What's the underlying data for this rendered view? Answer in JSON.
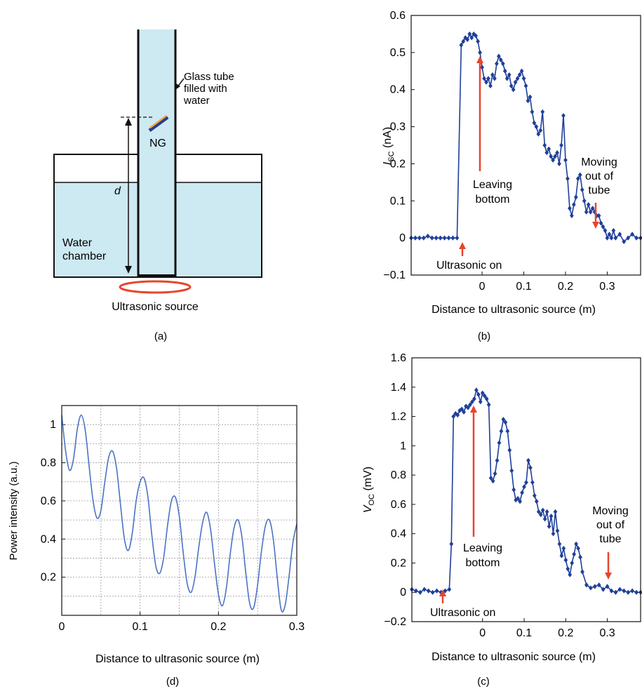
{
  "colors": {
    "water": "#cde9f1",
    "source_ring": "#e8452c",
    "data_blue": "#1f3f99",
    "curve_blue": "#4a73c4",
    "arrow_red": "#e8452c",
    "ng_blue": "#2a3c8f",
    "ng_orange": "#f5a73b"
  },
  "panel_a": {
    "label": "(a)",
    "tube_label": [
      "Glass tube",
      "filled with",
      "water"
    ],
    "ng_label": "NG",
    "d_label": "d",
    "chamber_label": [
      "Water",
      "chamber"
    ],
    "source_label": "Ultrasonic source"
  },
  "panel_b": {
    "label": "(b)",
    "ylabel_main": "I",
    "ylabel_sub": "SC",
    "ylabel_unit": " (nA)",
    "xlabel": "Distance to ultrasonic source (m)",
    "annotations": {
      "leaving": [
        "Leaving",
        "bottom"
      ],
      "moving": [
        "Moving",
        "out of",
        "tube"
      ],
      "on": "Ultrasonic on"
    }
  },
  "panel_c": {
    "label": "(c)",
    "ylabel_main": "V",
    "ylabel_sub": "OC",
    "ylabel_unit": " (mV)",
    "xlabel": "Distance to ultrasonic source (m)",
    "annotations": {
      "leaving": [
        "Leaving",
        "bottom"
      ],
      "moving": [
        "Moving",
        "out of",
        "tube"
      ],
      "on": "Ultrasonic on"
    }
  },
  "panel_d": {
    "label": "(d)",
    "ylabel": "Power intensity (a.u.)",
    "xlabel": "Distance to ultrasonic source (m)"
  },
  "chart_data": [
    {
      "id": "b",
      "type": "line",
      "xlim": [
        -0.17,
        0.38
      ],
      "ylim": [
        -0.1,
        0.6
      ],
      "xticks": [
        0,
        0.1,
        0.2,
        0.3
      ],
      "xtick_labels": [
        "0",
        "0.1",
        "0.2",
        "0.3"
      ],
      "yticks": [
        -0.1,
        0,
        0.1,
        0.2,
        0.3,
        0.4,
        0.5,
        0.6
      ],
      "ytick_labels": [
        "−0.1",
        "0",
        "0.1",
        "0.2",
        "0.3",
        "0.4",
        "0.5",
        "0.6"
      ],
      "grid": false,
      "x": [
        -0.17,
        -0.16,
        -0.15,
        -0.14,
        -0.13,
        -0.12,
        -0.11,
        -0.1,
        -0.09,
        -0.08,
        -0.07,
        -0.06,
        -0.05,
        -0.045,
        -0.04,
        -0.035,
        -0.03,
        -0.025,
        -0.02,
        -0.015,
        -0.01,
        -0.005,
        0.0,
        0.005,
        0.01,
        0.015,
        0.02,
        0.025,
        0.03,
        0.035,
        0.04,
        0.045,
        0.05,
        0.055,
        0.06,
        0.065,
        0.07,
        0.075,
        0.08,
        0.085,
        0.09,
        0.095,
        0.1,
        0.105,
        0.11,
        0.115,
        0.12,
        0.125,
        0.13,
        0.135,
        0.14,
        0.145,
        0.15,
        0.155,
        0.16,
        0.165,
        0.17,
        0.175,
        0.18,
        0.185,
        0.19,
        0.195,
        0.2,
        0.205,
        0.21,
        0.215,
        0.22,
        0.225,
        0.23,
        0.235,
        0.24,
        0.245,
        0.25,
        0.255,
        0.26,
        0.265,
        0.27,
        0.275,
        0.28,
        0.285,
        0.29,
        0.295,
        0.3,
        0.305,
        0.31,
        0.315,
        0.32,
        0.33,
        0.34,
        0.35,
        0.36,
        0.37,
        0.38
      ],
      "y": [
        0.0,
        0.0,
        0.0,
        0.0,
        0.005,
        0.0,
        0.0,
        0.0,
        0.0,
        0.0,
        0.0,
        0.0,
        0.52,
        0.53,
        0.54,
        0.535,
        0.55,
        0.54,
        0.55,
        0.545,
        0.53,
        0.5,
        0.46,
        0.43,
        0.42,
        0.43,
        0.41,
        0.44,
        0.43,
        0.47,
        0.49,
        0.48,
        0.47,
        0.45,
        0.43,
        0.44,
        0.41,
        0.4,
        0.42,
        0.43,
        0.44,
        0.45,
        0.43,
        0.41,
        0.37,
        0.38,
        0.34,
        0.31,
        0.3,
        0.28,
        0.29,
        0.34,
        0.25,
        0.23,
        0.24,
        0.22,
        0.21,
        0.22,
        0.23,
        0.2,
        0.25,
        0.33,
        0.21,
        0.16,
        0.08,
        0.06,
        0.09,
        0.11,
        0.16,
        0.17,
        0.13,
        0.1,
        0.07,
        0.09,
        0.07,
        0.08,
        0.07,
        0.06,
        0.06,
        0.04,
        0.03,
        0.02,
        0.0,
        0.01,
        0.0,
        0.02,
        0.0,
        0.01,
        -0.01,
        0.0,
        0.01,
        0.0,
        0.0
      ]
    },
    {
      "id": "c",
      "type": "line",
      "xlim": [
        -0.17,
        0.38
      ],
      "ylim": [
        -0.2,
        1.6
      ],
      "xticks": [
        0,
        0.1,
        0.2,
        0.3
      ],
      "xtick_labels": [
        "0",
        "0.1",
        "0.2",
        "0.3"
      ],
      "yticks": [
        -0.2,
        0,
        0.2,
        0.4,
        0.6,
        0.8,
        1.0,
        1.2,
        1.4,
        1.6
      ],
      "ytick_labels": [
        "−0.2",
        "0",
        "0.2",
        "0.4",
        "0.6",
        "0.8",
        "1",
        "1.2",
        "1.4",
        "1.6"
      ],
      "grid": false,
      "x": [
        -0.17,
        -0.16,
        -0.15,
        -0.14,
        -0.13,
        -0.12,
        -0.11,
        -0.1,
        -0.09,
        -0.08,
        -0.075,
        -0.07,
        -0.065,
        -0.06,
        -0.055,
        -0.05,
        -0.045,
        -0.04,
        -0.035,
        -0.03,
        -0.025,
        -0.02,
        -0.015,
        -0.01,
        -0.005,
        0.0,
        0.005,
        0.01,
        0.015,
        0.02,
        0.025,
        0.03,
        0.035,
        0.04,
        0.045,
        0.05,
        0.055,
        0.06,
        0.065,
        0.07,
        0.075,
        0.08,
        0.085,
        0.09,
        0.095,
        0.1,
        0.105,
        0.11,
        0.115,
        0.12,
        0.125,
        0.13,
        0.135,
        0.14,
        0.145,
        0.15,
        0.155,
        0.16,
        0.165,
        0.17,
        0.175,
        0.18,
        0.185,
        0.19,
        0.195,
        0.2,
        0.205,
        0.21,
        0.215,
        0.22,
        0.225,
        0.23,
        0.235,
        0.24,
        0.25,
        0.26,
        0.27,
        0.28,
        0.29,
        0.3,
        0.31,
        0.32,
        0.33,
        0.34,
        0.35,
        0.36,
        0.37,
        0.38
      ],
      "y": [
        0.02,
        0.01,
        0.0,
        0.02,
        0.01,
        0.0,
        0.01,
        0.0,
        0.01,
        0.02,
        0.33,
        1.2,
        1.22,
        1.21,
        1.24,
        1.25,
        1.23,
        1.27,
        1.26,
        1.28,
        1.3,
        1.32,
        1.38,
        1.35,
        1.3,
        1.36,
        1.34,
        1.32,
        1.28,
        0.78,
        0.76,
        0.81,
        0.9,
        1.02,
        1.1,
        1.18,
        1.16,
        1.1,
        0.97,
        0.83,
        0.7,
        0.63,
        0.64,
        0.62,
        0.68,
        0.72,
        0.75,
        0.9,
        0.85,
        0.75,
        0.66,
        0.62,
        0.55,
        0.53,
        0.56,
        0.5,
        0.55,
        0.45,
        0.52,
        0.4,
        0.55,
        0.42,
        0.33,
        0.25,
        0.3,
        0.22,
        0.16,
        0.12,
        0.2,
        0.26,
        0.33,
        0.3,
        0.24,
        0.14,
        0.05,
        0.03,
        0.04,
        0.05,
        0.02,
        0.04,
        0.01,
        0.0,
        0.02,
        0.01,
        0.0,
        0.01,
        0.0,
        0.0
      ]
    },
    {
      "id": "d",
      "type": "line",
      "xlim": [
        0,
        0.3
      ],
      "ylim": [
        0,
        1.1
      ],
      "xticks": [
        0,
        0.1,
        0.2,
        0.3
      ],
      "xtick_labels": [
        "0",
        "0.1",
        "0.2",
        "0.3"
      ],
      "yticks": [
        0.2,
        0.4,
        0.6,
        0.8,
        1.0
      ],
      "ytick_labels": [
        "0.2",
        "0.4",
        "0.6",
        "0.8",
        "1"
      ],
      "grid": true,
      "grid_minor_x": [
        0.05,
        0.15,
        0.25
      ],
      "grid_minor_y": [
        0.1,
        0.3,
        0.5,
        0.7,
        0.9
      ],
      "x": [
        0,
        0.005,
        0.01,
        0.015,
        0.02,
        0.025,
        0.03,
        0.035,
        0.04,
        0.045,
        0.05,
        0.055,
        0.06,
        0.065,
        0.07,
        0.075,
        0.08,
        0.085,
        0.09,
        0.095,
        0.1,
        0.105,
        0.11,
        0.115,
        0.12,
        0.125,
        0.13,
        0.135,
        0.14,
        0.145,
        0.15,
        0.155,
        0.16,
        0.165,
        0.17,
        0.175,
        0.18,
        0.185,
        0.19,
        0.195,
        0.2,
        0.205,
        0.21,
        0.215,
        0.22,
        0.225,
        0.23,
        0.235,
        0.24,
        0.245,
        0.25,
        0.255,
        0.26,
        0.265,
        0.27,
        0.275,
        0.28,
        0.285,
        0.29,
        0.295,
        0.3
      ],
      "y": [
        1.05,
        0.86,
        0.76,
        0.82,
        0.98,
        1.05,
        0.97,
        0.78,
        0.6,
        0.51,
        0.55,
        0.7,
        0.83,
        0.86,
        0.77,
        0.58,
        0.4,
        0.34,
        0.43,
        0.6,
        0.7,
        0.72,
        0.62,
        0.42,
        0.26,
        0.22,
        0.3,
        0.47,
        0.6,
        0.62,
        0.52,
        0.33,
        0.17,
        0.12,
        0.2,
        0.36,
        0.49,
        0.54,
        0.45,
        0.27,
        0.11,
        0.05,
        0.14,
        0.32,
        0.46,
        0.5,
        0.41,
        0.22,
        0.06,
        0.04,
        0.16,
        0.34,
        0.47,
        0.5,
        0.4,
        0.2,
        0.03,
        0.05,
        0.2,
        0.38,
        0.48
      ]
    }
  ]
}
